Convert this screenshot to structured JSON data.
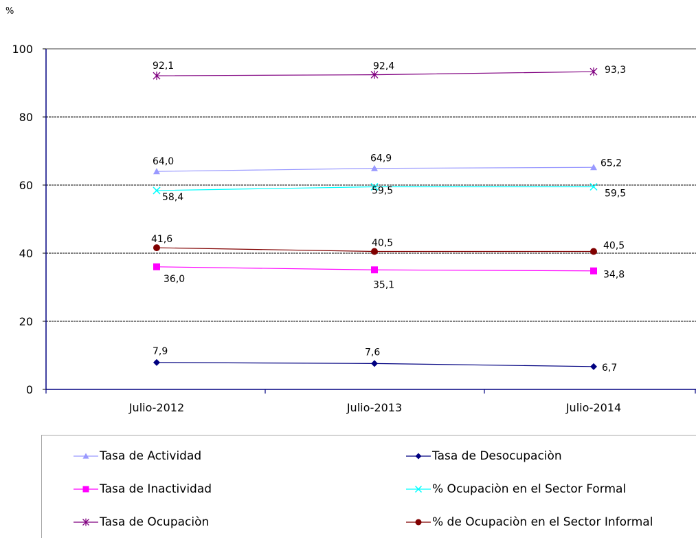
{
  "chart_data": {
    "type": "line",
    "ylabel": "%",
    "ylim": [
      0,
      100
    ],
    "yticks": [
      0,
      20,
      40,
      60,
      80,
      100
    ],
    "categories": [
      "Julio-2012",
      "Julio-2013",
      "Julio-2014"
    ],
    "grid": true,
    "legend_position": "bottom",
    "series": [
      {
        "name": "Tasa de Actividad",
        "values": [
          64.0,
          64.9,
          65.2
        ],
        "labels": [
          "64,0",
          "64,9",
          "65,2"
        ],
        "color": "#9999ff",
        "marker": "triangle"
      },
      {
        "name": "Tasa de Desocupaciòn",
        "values": [
          7.9,
          7.6,
          6.7
        ],
        "labels": [
          "7,9",
          "7,6",
          "6,7"
        ],
        "color": "#000080",
        "marker": "diamond"
      },
      {
        "name": "Tasa de Inactividad",
        "values": [
          36.0,
          35.1,
          34.8
        ],
        "labels": [
          "36,0",
          "35,1",
          "34,8"
        ],
        "color": "#ff00ff",
        "marker": "square"
      },
      {
        "name": "% Ocupaciòn en el Sector Formal",
        "values": [
          58.4,
          59.5,
          59.5
        ],
        "labels": [
          "58,4",
          "59,5",
          "59,5"
        ],
        "color": "#00ffff",
        "marker": "x"
      },
      {
        "name": "Tasa de Ocupaciòn",
        "values": [
          92.1,
          92.4,
          93.3
        ],
        "labels": [
          "92,1",
          "92,4",
          "93,3"
        ],
        "color": "#800080",
        "marker": "star"
      },
      {
        "name": "% de Ocupaciòn en el Sector Informal",
        "values": [
          41.6,
          40.5,
          40.5
        ],
        "labels": [
          "41,6",
          "40,5",
          "40,5"
        ],
        "color": "#800000",
        "marker": "circle"
      }
    ]
  }
}
